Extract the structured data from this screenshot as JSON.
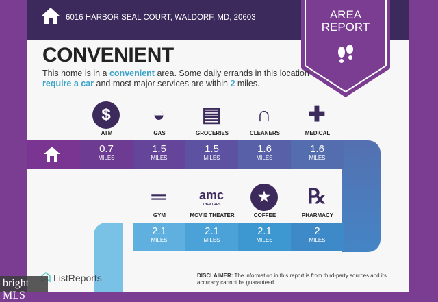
{
  "header": {
    "address": "6016 HARBOR SEAL COURT, WALDORF, MD, 20603",
    "badge_line1": "AREA",
    "badge_line2": "REPORT"
  },
  "title": "CONVENIENT",
  "description": {
    "p1": "This home is in a ",
    "h1": "convenient",
    "p2": " area. Some daily errands in this location ",
    "h2": "require a car",
    "p3": " and most major services are within ",
    "h3": "2",
    "p4": " miles."
  },
  "row1": [
    {
      "label": "ATM",
      "value": "0.7",
      "unit": "MILES",
      "icon": "dollar-icon",
      "color": "#6d3c92"
    },
    {
      "label": "GAS",
      "value": "1.5",
      "unit": "MILES",
      "icon": "shell-icon",
      "color": "#64459a"
    },
    {
      "label": "GROCERIES",
      "value": "1.5",
      "unit": "MILES",
      "icon": "grocery-basket-icon",
      "color": "#5d52a2"
    },
    {
      "label": "CLEANERS",
      "value": "1.6",
      "unit": "MILES",
      "icon": "hanger-icon",
      "color": "#5860a8"
    },
    {
      "label": "MEDICAL",
      "value": "1.6",
      "unit": "MILES",
      "icon": "medical-cross-icon",
      "color": "#536dae"
    }
  ],
  "row2": [
    {
      "label": "GYM",
      "value": "2.1",
      "unit": "MILES",
      "icon": "dumbbell-icon",
      "color": "#5fb0de"
    },
    {
      "label": "MOVIE THEATER",
      "value": "2.1",
      "unit": "MILES",
      "icon": "amc-logo",
      "logo_text": "amc",
      "logo_sub": "THEATRES",
      "color": "#4aa2d8"
    },
    {
      "label": "COFFEE",
      "value": "2.1",
      "unit": "MILES",
      "icon": "starbucks-logo",
      "color": "#3d98d2"
    },
    {
      "label": "PHARMACY",
      "value": "2",
      "unit": "MILES",
      "icon": "rx-icon",
      "color": "#3e89c8"
    }
  ],
  "footer": {
    "brand": "ListReports",
    "disclaimer_label": "DISCLAIMER:",
    "disclaimer": " The information in this report is from third-party sources and its accuracy cannot be guaranteed.",
    "watermark": "bright MLS"
  }
}
